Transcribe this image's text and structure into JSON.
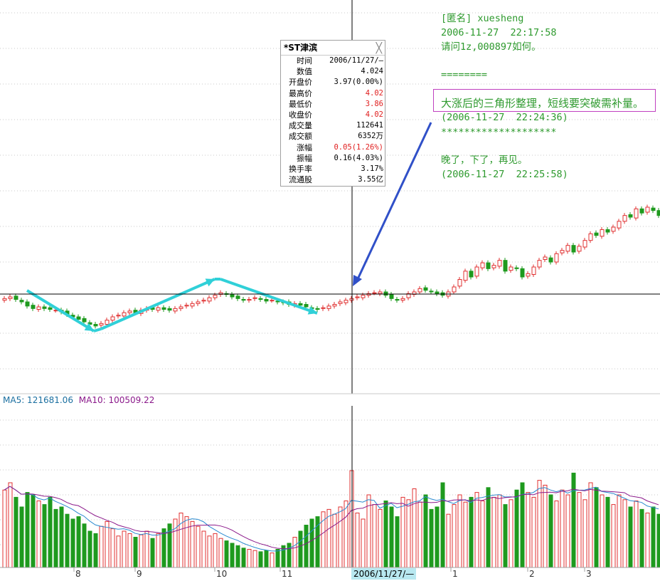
{
  "comments": [
    "[匿名] xuesheng",
    "2006-11-27  22:17:58",
    "请问1z,000897如何。",
    "",
    "========",
    "",
    "(2006-11-27  22:24:36)",
    "********************",
    "",
    "晚了，下了，再见。",
    "(2006-11-27  22:25:58)"
  ],
  "highlight": "大涨后的三角形整理，短线要突破需补量。",
  "popup": {
    "title": "*ST津滨",
    "close": "╳",
    "rows": [
      {
        "label": "时间",
        "value": "2006/11/27/—",
        "red": false
      },
      {
        "label": "数值",
        "value": "4.024",
        "red": false
      },
      {
        "label": "开盘价",
        "value": "3.97(0.00%)",
        "red": false
      },
      {
        "label": "最高价",
        "value": "4.02",
        "red": true
      },
      {
        "label": "最低价",
        "value": "3.86",
        "red": true
      },
      {
        "label": "收盘价",
        "value": "4.02",
        "red": true
      },
      {
        "label": "成交量",
        "value": "112641",
        "red": false
      },
      {
        "label": "成交额",
        "value": "6352万",
        "red": false
      },
      {
        "label": "涨幅",
        "value": "0.05(1.26%)",
        "red": true
      },
      {
        "label": "振幅",
        "value": "0.16(4.03%)",
        "red": false
      },
      {
        "label": "换手率",
        "value": "3.17%",
        "red": false
      },
      {
        "label": "流通股",
        "value": "3.55亿",
        "red": false
      }
    ]
  },
  "ma_legend": {
    "ma5": "MA5: 121681.06",
    "ma10": "MA10: 100509.22"
  },
  "x_labels": [
    "8",
    "9",
    "10",
    "11",
    "1",
    "2",
    "3"
  ],
  "cursor_label": "2006/11/27/—",
  "colors": {
    "up": "#e03030",
    "down": "#1e9a1e",
    "ma5": "#2a8ad0",
    "ma10": "#8b1a8b",
    "arrow": "#30d0d8",
    "pointer": "#3050c8"
  },
  "chart_data": {
    "type": "candlestick",
    "instrument": "*ST津滨",
    "closes": [
      3.72,
      3.74,
      3.71,
      3.68,
      3.63,
      3.6,
      3.62,
      3.6,
      3.59,
      3.58,
      3.56,
      3.53,
      3.5,
      3.47,
      3.44,
      3.41,
      3.39,
      3.42,
      3.46,
      3.5,
      3.52,
      3.55,
      3.57,
      3.55,
      3.58,
      3.6,
      3.59,
      3.61,
      3.59,
      3.58,
      3.6,
      3.62,
      3.64,
      3.66,
      3.68,
      3.7,
      3.73,
      3.76,
      3.79,
      3.77,
      3.74,
      3.72,
      3.7,
      3.71,
      3.73,
      3.71,
      3.69,
      3.7,
      3.68,
      3.67,
      3.65,
      3.66,
      3.64,
      3.62,
      3.6,
      3.59,
      3.61,
      3.63,
      3.65,
      3.68,
      3.7,
      3.72,
      3.74,
      3.76,
      3.78,
      3.79,
      3.8,
      3.76,
      3.72,
      3.7,
      3.72,
      3.78,
      3.8,
      3.84,
      3.82,
      3.8,
      3.78,
      3.76,
      3.8,
      3.86,
      3.95,
      4.05,
      3.98,
      4.1,
      4.15,
      4.08,
      4.12,
      4.18,
      4.05,
      4.1,
      4.08,
      3.98,
      4.02,
      4.1,
      4.18,
      4.22,
      4.16,
      4.26,
      4.3,
      4.36,
      4.28,
      4.35,
      4.42,
      4.5,
      4.48,
      4.55,
      4.52,
      4.58,
      4.65,
      4.72,
      4.7,
      4.8,
      4.75,
      4.82,
      4.78,
      4.72
    ],
    "volumes": [
      64,
      70,
      58,
      50,
      62,
      60,
      55,
      52,
      58,
      48,
      50,
      44,
      40,
      42,
      36,
      30,
      28,
      34,
      38,
      32,
      26,
      30,
      28,
      25,
      27,
      30,
      24,
      28,
      32,
      36,
      40,
      45,
      42,
      38,
      34,
      30,
      26,
      28,
      24,
      22,
      20,
      18,
      16,
      15,
      14,
      13,
      14,
      12,
      15,
      18,
      20,
      25,
      30,
      35,
      40,
      42,
      46,
      48,
      44,
      50,
      55,
      80,
      45,
      40,
      60,
      52,
      48,
      55,
      50,
      42,
      58,
      56,
      65,
      54,
      60,
      48,
      50,
      70,
      44,
      52,
      60,
      54,
      58,
      62,
      55,
      66,
      58,
      60,
      52,
      56,
      64,
      70,
      62,
      58,
      72,
      68,
      60,
      55,
      64,
      60,
      78,
      62,
      56,
      70,
      66,
      60,
      58,
      52,
      60,
      56,
      50,
      55,
      48,
      45,
      50,
      44
    ],
    "xlabels": [
      "8",
      "9",
      "10",
      "11",
      "2006/11/27/—",
      "1",
      "2",
      "3"
    ],
    "selected": {
      "date": "2006/11/27/—",
      "open": 3.97,
      "high": 4.02,
      "low": 3.86,
      "close": 4.02
    }
  }
}
